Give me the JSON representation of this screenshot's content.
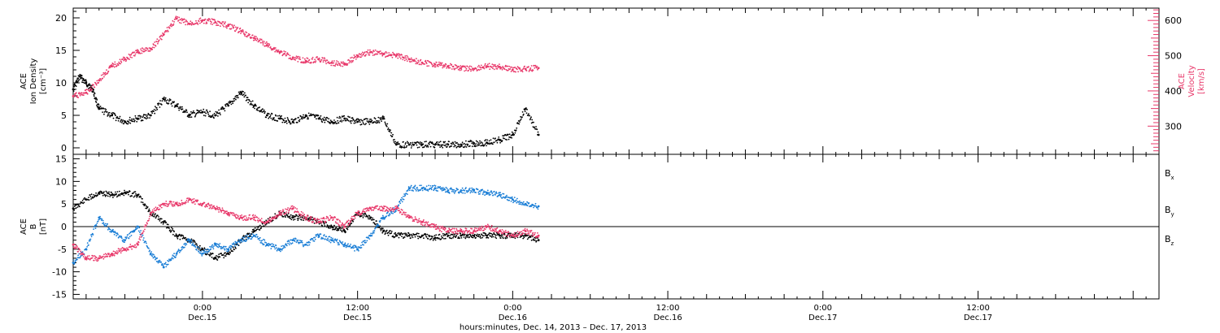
{
  "xlabel": "hours:minutes, Dec. 14, 2013 – Dec. 17, 2013",
  "colors": {
    "black": "#000000",
    "pink": "#e8386a",
    "blue": "#1a7ed6"
  },
  "chart_data": [
    {
      "type": "scatter",
      "panel": "top",
      "ylabel_left": [
        "ACE",
        "Ion Density",
        "[cm⁻³]"
      ],
      "ylabel_right": [
        "ACE",
        "Velocity",
        "[km/s]"
      ],
      "xlim": [
        0,
        84
      ],
      "ylim_left": [
        -1,
        21.5
      ],
      "ylim_right": [
        220,
        635
      ],
      "yticks_left": [
        0,
        5,
        10,
        15,
        20
      ],
      "yticks_right": [
        300,
        400,
        500,
        600
      ],
      "x_ticks": [
        {
          "x": 10,
          "time": "0:00",
          "date": "Dec.15"
        },
        {
          "x": 22,
          "time": "12:00",
          "date": "Dec.15"
        },
        {
          "x": 34,
          "time": "0:00",
          "date": "Dec.16"
        },
        {
          "x": 46,
          "time": "12:00",
          "date": "Dec.16"
        },
        {
          "x": 58,
          "time": "0:00",
          "date": "Dec.17"
        },
        {
          "x": 70,
          "time": "12:00",
          "date": "Dec.17"
        }
      ],
      "series": [
        {
          "label": "Ion Density",
          "axis": "left",
          "color": "#000000",
          "x": [
            0,
            0.5,
            1,
            1.5,
            2,
            3,
            4,
            5,
            6,
            7,
            8,
            9,
            10,
            11,
            12,
            13,
            14,
            15,
            16,
            17,
            18,
            19,
            20,
            21,
            22,
            23,
            24,
            25,
            26,
            27,
            28,
            29,
            30,
            31,
            32,
            33,
            34,
            35,
            36
          ],
          "y": [
            9,
            11,
            10,
            9,
            6,
            5,
            4,
            4.5,
            5,
            7.5,
            6.5,
            5,
            5.5,
            5,
            6.5,
            8.5,
            6.5,
            5,
            4.5,
            4,
            5,
            4.5,
            4,
            4.5,
            4,
            4,
            4.5,
            0.5,
            0.5,
            0.5,
            0.5,
            0.5,
            0.5,
            0.7,
            0.8,
            1.2,
            2,
            6,
            2
          ]
        },
        {
          "label": "Velocity",
          "axis": "right",
          "color": "#e8386a",
          "x": [
            0,
            1,
            2,
            3,
            4,
            5,
            6,
            7,
            8,
            9,
            10,
            11,
            12,
            13,
            14,
            15,
            16,
            17,
            18,
            19,
            20,
            21,
            22,
            23,
            24,
            25,
            26,
            27,
            28,
            29,
            30,
            31,
            32,
            33,
            34,
            35,
            36
          ],
          "y": [
            385,
            395,
            430,
            470,
            490,
            510,
            520,
            560,
            605,
            590,
            600,
            595,
            585,
            570,
            550,
            530,
            510,
            495,
            485,
            490,
            480,
            475,
            500,
            510,
            505,
            500,
            490,
            480,
            475,
            470,
            465,
            462,
            470,
            468,
            460,
            462,
            465
          ]
        }
      ]
    },
    {
      "type": "scatter",
      "panel": "bottom",
      "ylabel_left": [
        "ACE",
        "B",
        "[nT]"
      ],
      "xlim": [
        0,
        84
      ],
      "ylim": [
        -16,
        16
      ],
      "yticks": [
        -15,
        -10,
        -5,
        0,
        5,
        10,
        15
      ],
      "series": [
        {
          "name": "B",
          "subscript": "x",
          "color": "#000000",
          "x": [
            0,
            1,
            2,
            3,
            4,
            5,
            6,
            7,
            8,
            9,
            10,
            11,
            12,
            13,
            14,
            15,
            16,
            17,
            18,
            19,
            20,
            21,
            22,
            23,
            24,
            25,
            26,
            27,
            28,
            29,
            30,
            31,
            32,
            33,
            34,
            35,
            36
          ],
          "y": [
            4,
            6,
            7.5,
            7,
            7.5,
            7,
            3,
            1,
            -2,
            -3,
            -5,
            -7,
            -6,
            -3,
            -1,
            1,
            3,
            2,
            2,
            1,
            0,
            -1,
            3,
            2,
            -1,
            -2,
            -2,
            -2,
            -2.5,
            -2,
            -2,
            -2,
            -2,
            -2,
            -2,
            -2,
            -3
          ]
        },
        {
          "name": "B",
          "subscript": "y",
          "color": "#1a7ed6",
          "x": [
            0,
            1,
            2,
            3,
            4,
            5,
            6,
            7,
            8,
            9,
            10,
            11,
            12,
            13,
            14,
            15,
            16,
            17,
            18,
            19,
            20,
            21,
            22,
            23,
            24,
            25,
            26,
            27,
            28,
            29,
            30,
            31,
            32,
            33,
            34,
            35,
            36
          ],
          "y": [
            -8,
            -5,
            2,
            -1,
            -3,
            0,
            -6,
            -9,
            -6,
            -3,
            -6,
            -4,
            -5,
            -3,
            -2,
            -4,
            -5,
            -3,
            -4,
            -2,
            -3,
            -4,
            -5,
            -2,
            2,
            4,
            8.5,
            8.5,
            8.5,
            8,
            8,
            8,
            7.5,
            7,
            6,
            5,
            4.5
          ]
        },
        {
          "name": "B",
          "subscript": "z",
          "color": "#e8386a",
          "x": [
            0,
            1,
            2,
            3,
            4,
            5,
            6,
            7,
            8,
            9,
            10,
            11,
            12,
            13,
            14,
            15,
            16,
            17,
            18,
            19,
            20,
            21,
            22,
            23,
            24,
            25,
            26,
            27,
            28,
            29,
            30,
            31,
            32,
            33,
            34,
            35,
            36
          ],
          "y": [
            -4,
            -7,
            -7,
            -6,
            -5,
            -4,
            3,
            5,
            5,
            6,
            5,
            4,
            3,
            2,
            2,
            1,
            3,
            4,
            2,
            1,
            2,
            0,
            3,
            4,
            4,
            4,
            2,
            1,
            0,
            -1,
            -1,
            -1,
            0,
            -1,
            -2,
            -1,
            -2
          ]
        }
      ]
    }
  ]
}
